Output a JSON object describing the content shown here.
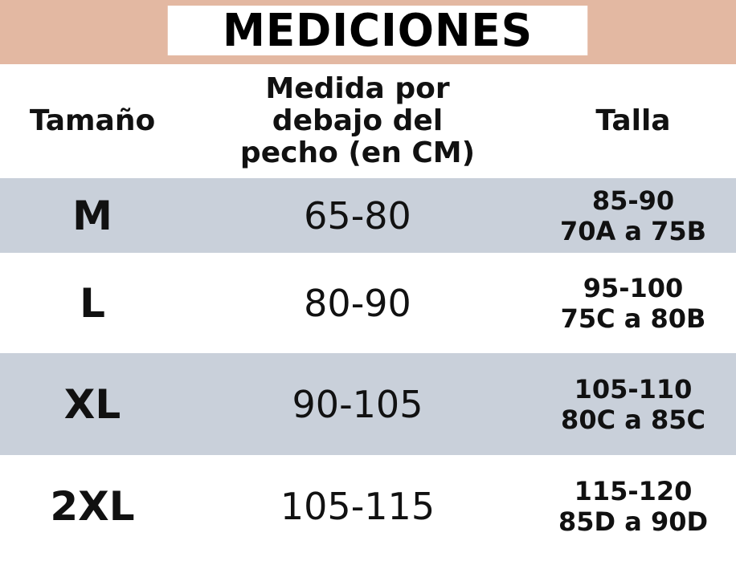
{
  "title": "MEDICIONES",
  "colors": {
    "title_band": "#e3b8a2",
    "row_stripe": "#c9d0da"
  },
  "headers": [
    "Tamaño",
    "Medida por debajo del pecho (en CM)",
    "Talla"
  ],
  "rows": [
    {
      "size": "M",
      "measure": "65-80",
      "talla": [
        "85-90",
        "70A a 75B"
      ]
    },
    {
      "size": "L",
      "measure": "80-90",
      "talla": [
        "95-100",
        "75C a 80B"
      ]
    },
    {
      "size": "XL",
      "measure": "90-105",
      "talla": [
        "105-110",
        "80C a 85C"
      ]
    },
    {
      "size": "2XL",
      "measure": "105-115",
      "talla": [
        "115-120",
        "85D a 90D"
      ]
    }
  ]
}
